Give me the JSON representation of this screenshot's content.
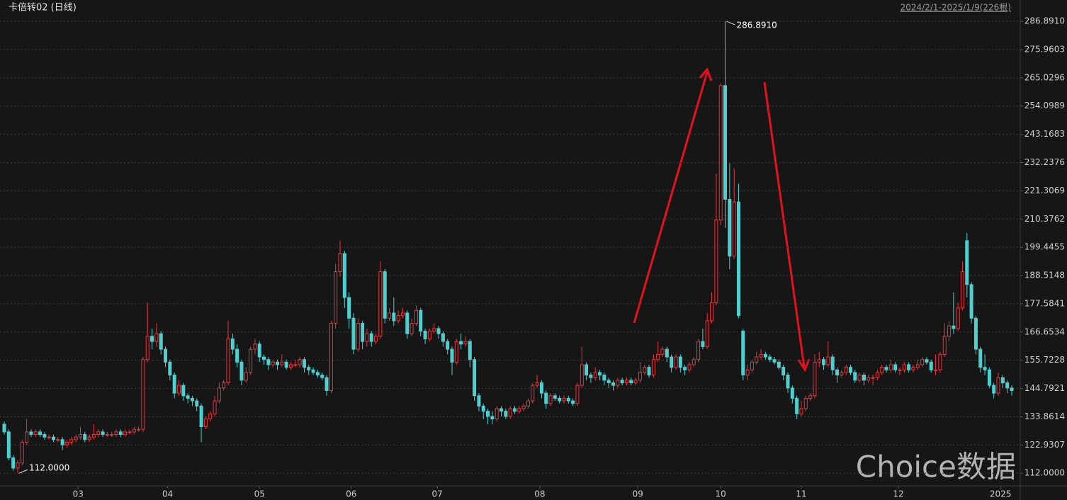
{
  "chart_data": {
    "type": "candlestick",
    "title": "卡倍转02 (日线)",
    "subtitle": "2024/2/1-2025/1/9(226根)",
    "watermark": "Choice数据",
    "max_label": {
      "value": 286.891,
      "label": "286.8910"
    },
    "min_label": {
      "value": 112,
      "label": "112.0000"
    },
    "up_color": "#e8353b",
    "down_color": "#4fcfcf",
    "grid": true,
    "ylim": [
      108.5,
      290
    ],
    "yticks": [
      {
        "value": 112,
        "label": "112.0000"
      },
      122.9307,
      133.8614,
      144.7921,
      155.7228,
      166.6534,
      177.5841,
      188.5148,
      199.4455,
      210.3762,
      221.3069,
      232.2376,
      243.1683,
      254.0989,
      265.0296,
      275.9603,
      {
        "value": 286.891,
        "label": "286.8910"
      }
    ],
    "xticks": [
      {
        "value": 16.5,
        "label": "03"
      },
      {
        "value": 36.5,
        "label": "04"
      },
      {
        "value": 57,
        "label": "05"
      },
      {
        "value": 77.5,
        "label": "06"
      },
      {
        "value": 96.7,
        "label": "07"
      },
      {
        "value": 119.6,
        "label": "08"
      },
      {
        "value": 141.5,
        "label": "09"
      },
      {
        "value": 160,
        "label": "10"
      },
      {
        "value": 178,
        "label": "11"
      },
      {
        "value": 199.7,
        "label": "12"
      },
      {
        "value": 222.5,
        "label": "2025"
      }
    ],
    "series": [
      {
        "open": [
          131,
          128,
          118,
          114,
          116,
          124,
          128,
          127,
          128,
          127,
          126,
          126,
          125,
          125,
          123,
          124,
          125,
          126,
          127,
          125,
          126,
          127,
          128,
          127,
          127,
          127,
          128,
          127,
          128,
          128,
          129,
          129,
          156,
          165,
          163,
          166,
          160,
          155,
          150,
          143,
          146,
          142,
          141,
          140,
          138,
          130,
          133,
          135,
          140,
          145,
          147,
          164,
          160,
          155,
          148,
          151,
          160,
          162,
          157,
          156,
          154,
          155,
          154,
          155,
          153,
          154,
          154,
          156,
          153,
          152,
          151,
          150,
          149,
          144,
          170,
          190,
          197,
          180,
          172,
          160,
          170,
          163,
          166,
          163,
          165,
          190,
          172,
          174,
          171,
          173,
          174,
          166,
          170,
          175,
          167,
          164,
          167,
          168,
          166,
          163,
          160,
          155,
          163,
          162,
          163,
          156,
          142,
          138,
          136,
          134,
          133,
          137,
          136,
          134,
          137,
          136,
          137,
          138,
          140,
          146,
          147,
          143,
          139,
          142,
          141,
          140,
          141,
          140,
          139,
          146,
          154,
          150,
          149,
          151,
          150,
          148,
          147,
          146,
          148,
          147,
          148,
          147,
          148,
          151,
          153,
          150,
          156,
          158,
          160,
          157,
          153,
          157,
          153,
          152,
          154,
          156,
          163,
          161,
          171,
          178,
          210,
          262,
          218,
          196,
          217,
          167,
          150,
          152,
          155,
          157,
          158,
          157,
          156,
          155,
          153,
          150,
          145,
          141,
          135,
          137,
          141,
          142,
          155,
          156,
          154,
          157,
          152,
          150,
          151,
          153,
          151,
          148,
          150,
          148,
          149,
          149,
          151,
          153,
          152,
          154,
          152,
          152,
          154,
          152,
          153,
          154,
          156,
          155,
          152,
          152,
          158,
          165,
          169,
          168,
          176,
          202,
          185,
          172,
          160,
          153,
          152,
          146,
          143,
          149,
          147,
          145
        ],
        "high": [
          132,
          129,
          119,
          117,
          125,
          133,
          129,
          129,
          129,
          128,
          127,
          127,
          126,
          126,
          125,
          126,
          127,
          130,
          128,
          127,
          131,
          129,
          129,
          128,
          128,
          129,
          129,
          129,
          129,
          130,
          130,
          157,
          178,
          168,
          170,
          167,
          161,
          156,
          151,
          148,
          147,
          143,
          142,
          141,
          139,
          134,
          136,
          142,
          147,
          148,
          171,
          166,
          162,
          156,
          153,
          161,
          164,
          163,
          158,
          157,
          156,
          156,
          158,
          156,
          155,
          156,
          157,
          157,
          154,
          153,
          152,
          151,
          150,
          171,
          193,
          202,
          198,
          182,
          174,
          172,
          171,
          168,
          167,
          166,
          194,
          191,
          176,
          180,
          175,
          176,
          175,
          172,
          177,
          176,
          168,
          168,
          170,
          169,
          167,
          164,
          161,
          164,
          166,
          165,
          164,
          157,
          143,
          139,
          137,
          136,
          138,
          138,
          137,
          138,
          138,
          138,
          139,
          141,
          147,
          150,
          148,
          144,
          143,
          143,
          142,
          142,
          142,
          141,
          147,
          161,
          155,
          151,
          153,
          152,
          151,
          149,
          148,
          149,
          149,
          149,
          149,
          149,
          155,
          154,
          154,
          158,
          163,
          161,
          161,
          158,
          158,
          158,
          154,
          155,
          157,
          164,
          168,
          174,
          182,
          228,
          263,
          286.891,
          232,
          230,
          224,
          168,
          154,
          156,
          159,
          160,
          159,
          158,
          157,
          156,
          154,
          151,
          146,
          142,
          140,
          142,
          143,
          158,
          159,
          157,
          163,
          158,
          153,
          152,
          154,
          154,
          152,
          151,
          151,
          150,
          150,
          152,
          154,
          154,
          156,
          155,
          153,
          155,
          155,
          154,
          156,
          157,
          157,
          156,
          158,
          159,
          170,
          171,
          182,
          178,
          194,
          205,
          186,
          173,
          161,
          158,
          153,
          147,
          151,
          150,
          148,
          146
        ],
        "low": [
          127,
          117,
          113,
          112,
          115,
          123,
          126,
          126,
          126,
          125,
          125,
          124,
          124,
          121,
          122,
          123,
          124,
          125,
          124,
          124,
          125,
          126,
          126,
          126,
          126,
          126,
          126,
          126,
          127,
          127,
          128,
          128,
          155,
          160,
          161,
          158,
          153,
          148,
          141,
          142,
          140,
          139,
          138,
          136,
          124,
          129,
          132,
          134,
          139,
          144,
          146,
          158,
          153,
          146,
          147,
          150,
          158,
          155,
          154,
          152,
          153,
          152,
          153,
          152,
          152,
          153,
          153,
          151,
          150,
          150,
          149,
          148,
          142,
          143,
          168,
          188,
          176,
          168,
          158,
          159,
          160,
          161,
          161,
          162,
          164,
          170,
          171,
          169,
          170,
          172,
          164,
          165,
          169,
          165,
          162,
          163,
          166,
          164,
          161,
          158,
          150,
          154,
          160,
          161,
          153,
          140,
          136,
          133,
          131,
          131,
          132,
          134,
          133,
          133,
          135,
          135,
          136,
          137,
          139,
          145,
          141,
          137,
          138,
          140,
          139,
          139,
          139,
          138,
          138,
          145,
          148,
          147,
          148,
          148,
          146,
          145,
          144,
          145,
          146,
          146,
          146,
          146,
          147,
          150,
          149,
          149,
          155,
          157,
          155,
          151,
          152,
          151,
          150,
          151,
          153,
          155,
          160,
          160,
          170,
          177,
          208,
          207,
          191,
          195,
          172,
          148,
          148,
          151,
          154,
          156,
          156,
          155,
          154,
          152,
          148,
          143,
          139,
          133,
          134,
          136,
          140,
          141,
          153,
          152,
          153,
          150,
          147,
          149,
          150,
          150,
          147,
          147,
          146,
          147,
          146,
          148,
          150,
          151,
          151,
          151,
          150,
          151,
          151,
          151,
          152,
          153,
          154,
          151,
          150,
          151,
          157,
          163,
          166,
          167,
          175,
          180,
          170,
          158,
          151,
          150,
          145,
          141,
          142,
          145,
          143,
          142
        ],
        "close": [
          128,
          118,
          114,
          116,
          124,
          128,
          127,
          128,
          127,
          126,
          126,
          125,
          125,
          123,
          124,
          125,
          126,
          127,
          125,
          126,
          127,
          128,
          127,
          127,
          127,
          128,
          127,
          128,
          128,
          129,
          129,
          156,
          165,
          163,
          166,
          160,
          155,
          150,
          143,
          146,
          142,
          141,
          140,
          138,
          130,
          133,
          135,
          140,
          145,
          147,
          164,
          160,
          155,
          148,
          151,
          160,
          162,
          157,
          156,
          154,
          155,
          154,
          155,
          153,
          154,
          154,
          156,
          153,
          152,
          151,
          150,
          149,
          144,
          170,
          190,
          197,
          180,
          172,
          160,
          170,
          163,
          166,
          163,
          165,
          190,
          172,
          174,
          171,
          173,
          174,
          166,
          170,
          175,
          167,
          164,
          167,
          168,
          166,
          163,
          160,
          155,
          163,
          162,
          163,
          156,
          142,
          138,
          136,
          134,
          133,
          137,
          136,
          134,
          137,
          136,
          137,
          138,
          140,
          146,
          147,
          143,
          139,
          142,
          141,
          140,
          141,
          140,
          139,
          146,
          154,
          150,
          149,
          151,
          150,
          148,
          147,
          146,
          148,
          147,
          148,
          147,
          148,
          151,
          153,
          150,
          156,
          158,
          160,
          157,
          153,
          157,
          153,
          152,
          154,
          156,
          163,
          161,
          171,
          178,
          210,
          262,
          218,
          196,
          217,
          173,
          150,
          152,
          155,
          157,
          158,
          157,
          156,
          155,
          153,
          150,
          145,
          141,
          135,
          137,
          141,
          142,
          155,
          156,
          154,
          157,
          152,
          150,
          151,
          153,
          151,
          148,
          150,
          148,
          149,
          149,
          151,
          153,
          152,
          154,
          152,
          152,
          154,
          152,
          153,
          154,
          156,
          155,
          152,
          152,
          158,
          165,
          169,
          168,
          176,
          190,
          185,
          172,
          160,
          153,
          152,
          146,
          143,
          149,
          147,
          145,
          144
        ]
      }
    ]
  }
}
